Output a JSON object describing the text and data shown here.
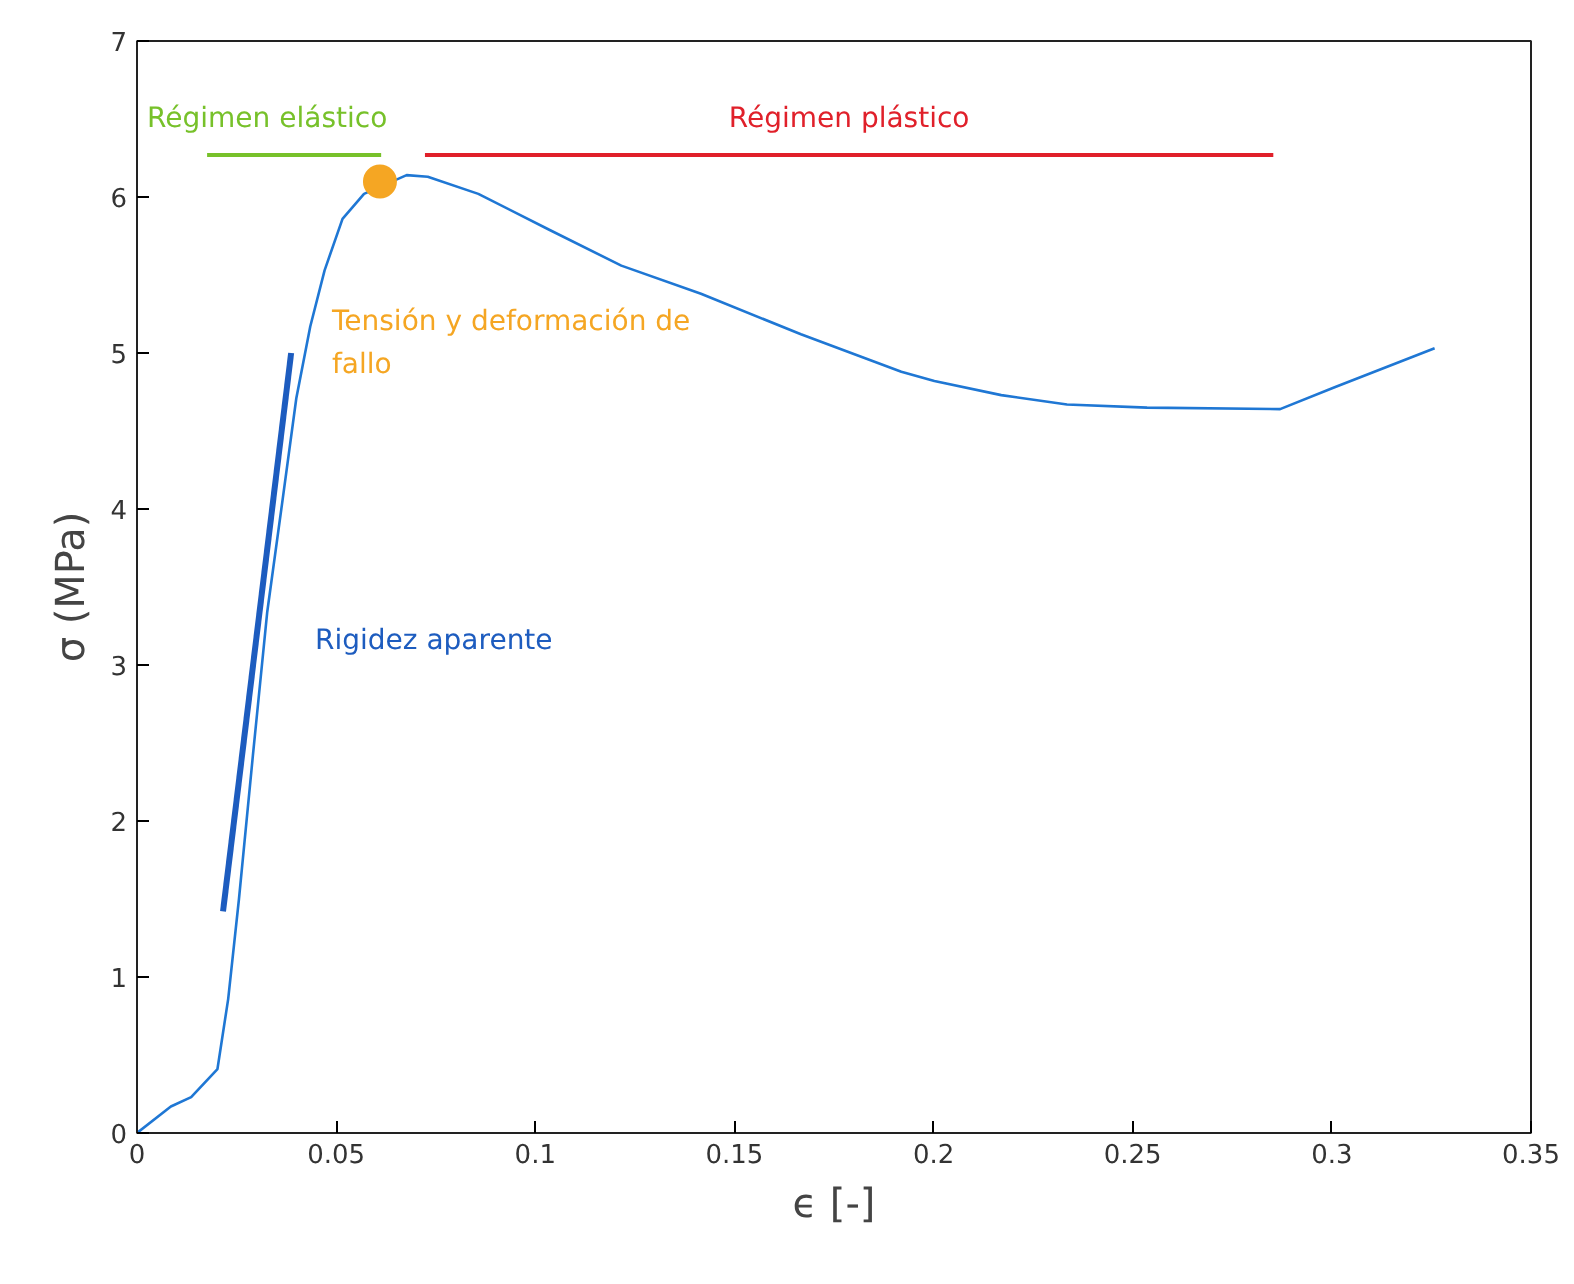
{
  "chart_data": {
    "type": "line",
    "xlabel": "ϵ [-]",
    "ylabel": "σ (MPa)",
    "xlim": [
      0,
      0.35
    ],
    "ylim": [
      0,
      7
    ],
    "xticks": [
      0,
      0.05,
      0.1,
      0.15,
      0.2,
      0.25,
      0.3,
      0.35
    ],
    "yticks": [
      0,
      1,
      2,
      3,
      4,
      5,
      6,
      7
    ],
    "grid": false,
    "series": [
      {
        "color": "#1f77d4",
        "x": [
          0,
          0.0085,
          0.0136,
          0.0202,
          0.0229,
          0.0256,
          0.0291,
          0.0327,
          0.0364,
          0.04,
          0.0435,
          0.0471,
          0.0516,
          0.057,
          0.0677,
          0.073,
          0.0857,
          0.1035,
          0.1216,
          0.1416,
          0.1667,
          0.1919,
          0.2002,
          0.217,
          0.2335,
          0.2536,
          0.287,
          0.3007,
          0.3258
        ],
        "values": [
          0,
          0.17,
          0.23,
          0.41,
          0.86,
          1.5,
          2.42,
          3.34,
          4.03,
          4.71,
          5.17,
          5.53,
          5.86,
          6.02,
          6.14,
          6.13,
          6.02,
          5.79,
          5.56,
          5.38,
          5.12,
          4.88,
          4.82,
          4.73,
          4.67,
          4.65,
          4.64,
          4.78,
          5.03
        ]
      },
      {
        "name": "Régimen elástico",
        "color": "#77c12a",
        "x": [
          0.0176,
          0.0613
        ],
        "values": [
          6.27,
          6.27
        ]
      },
      {
        "name": "Régimen plástico",
        "color": "#e0202a",
        "x": [
          0.0723,
          0.2853
        ],
        "values": [
          6.27,
          6.27
        ]
      },
      {
        "name": "Rigidez aparente",
        "color": "#1d5cbf",
        "x": [
          0.0216,
          0.0387
        ],
        "values": [
          1.42,
          5.0
        ]
      },
      {
        "name": "Tensión y deformación de fallo",
        "type": "scatter",
        "marker": "circle",
        "color": "#f5a623",
        "x": [
          0.061
        ],
        "values": [
          6.1
        ]
      }
    ]
  }
}
